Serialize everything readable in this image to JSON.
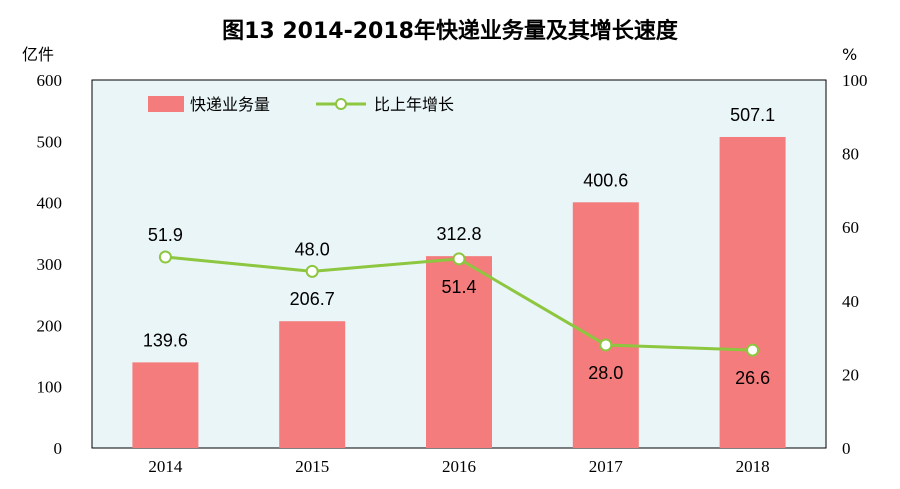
{
  "chart_data": {
    "type": "bar",
    "title": "图13  2014-2018年快递业务量及其增长速度",
    "left_unit": "亿件",
    "right_unit": "%",
    "categories": [
      "2014",
      "2015",
      "2016",
      "2017",
      "2018"
    ],
    "y_ticks": [
      "0",
      "100",
      "200",
      "300",
      "400",
      "500",
      "600"
    ],
    "y2_ticks": [
      "0",
      "20",
      "40",
      "60",
      "80",
      "100"
    ],
    "ylim": [
      0,
      600
    ],
    "y2lim": [
      0,
      100
    ],
    "grid": false,
    "legend_position": "top-left",
    "series": [
      {
        "name": "快递业务量",
        "type": "bar",
        "axis": "left",
        "color": "#f47c7c",
        "values": [
          139.6,
          206.7,
          312.8,
          400.6,
          507.1
        ],
        "labels": [
          "139.6",
          "206.7",
          "312.8",
          "400.6",
          "507.1"
        ]
      },
      {
        "name": "比上年增长",
        "type": "line",
        "axis": "right",
        "color": "#8dc63f",
        "values": [
          51.9,
          48.0,
          51.4,
          28.0,
          26.6
        ],
        "labels": [
          "51.9",
          "48.0",
          "51.4",
          "28.0",
          "26.6"
        ]
      }
    ],
    "colors": {
      "plot_background": "#eaf5f8",
      "axis": "#000000"
    }
  }
}
